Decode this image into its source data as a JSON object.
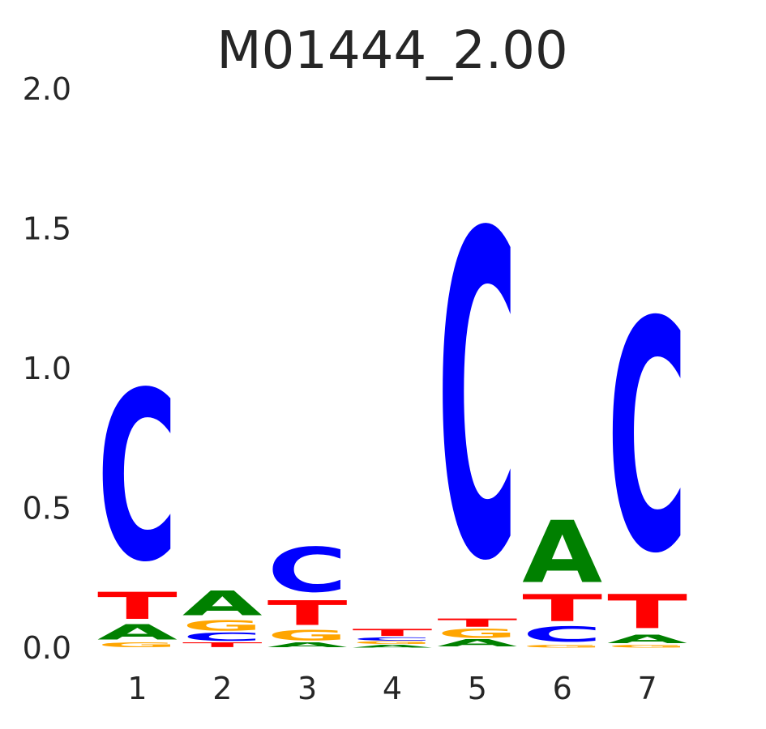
{
  "chart_data": {
    "type": "sequence-logo",
    "title": "M01444_2.00",
    "xlabel": "",
    "ylabel": "",
    "ylim": [
      0,
      2.0
    ],
    "y_ticks": [
      "0.0",
      "0.5",
      "1.0",
      "1.5",
      "2.0"
    ],
    "x_ticks": [
      "1",
      "2",
      "3",
      "4",
      "5",
      "6",
      "7"
    ],
    "grid": false,
    "colors": {
      "A": "#008000",
      "C": "#0000ff",
      "G": "#ffa500",
      "T": "#ff0000"
    },
    "positions": [
      {
        "position": "1",
        "stack": [
          {
            "letter": "G",
            "height": 0.02
          },
          {
            "letter": "A",
            "height": 0.065
          },
          {
            "letter": "T",
            "height": 0.115
          },
          {
            "letter": "C",
            "height": 0.72
          }
        ]
      },
      {
        "position": "2",
        "stack": [
          {
            "letter": "T",
            "height": 0.02
          },
          {
            "letter": "C",
            "height": 0.035
          },
          {
            "letter": "G",
            "height": 0.045
          },
          {
            "letter": "A",
            "height": 0.105
          }
        ]
      },
      {
        "position": "3",
        "stack": [
          {
            "letter": "A",
            "height": 0.02
          },
          {
            "letter": "G",
            "height": 0.045
          },
          {
            "letter": "T",
            "height": 0.105
          },
          {
            "letter": "C",
            "height": 0.19
          }
        ]
      },
      {
        "position": "4",
        "stack": [
          {
            "letter": "A",
            "height": 0.012
          },
          {
            "letter": "G",
            "height": 0.012
          },
          {
            "letter": "C",
            "height": 0.014
          },
          {
            "letter": "T",
            "height": 0.03
          }
        ]
      },
      {
        "position": "5",
        "stack": [
          {
            "letter": "A",
            "height": 0.03
          },
          {
            "letter": "G",
            "height": 0.04
          },
          {
            "letter": "T",
            "height": 0.035
          },
          {
            "letter": "C",
            "height": 1.38
          }
        ]
      },
      {
        "position": "6",
        "stack": [
          {
            "letter": "G",
            "height": 0.012
          },
          {
            "letter": "C",
            "height": 0.065
          },
          {
            "letter": "T",
            "height": 0.115
          },
          {
            "letter": "A",
            "height": 0.265
          }
        ]
      },
      {
        "position": "7",
        "stack": [
          {
            "letter": "G",
            "height": 0.012
          },
          {
            "letter": "A",
            "height": 0.035
          },
          {
            "letter": "T",
            "height": 0.145
          },
          {
            "letter": "C",
            "height": 0.98
          }
        ]
      }
    ]
  }
}
